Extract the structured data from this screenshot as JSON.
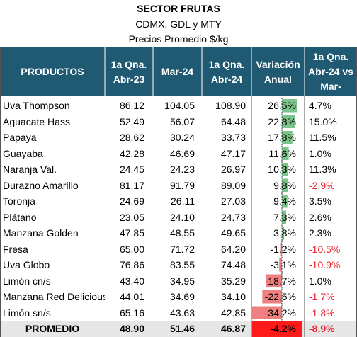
{
  "header": {
    "title": "SECTOR FRUTAS",
    "subtitle1": "CDMX, GDL y MTY",
    "subtitle2": "Precios Promedio $/kg"
  },
  "chart_data": {
    "type": "table",
    "columns": [
      "PRODUCTOS",
      "1a Qna. Abr-23",
      "Mar-24",
      "1a Qna. Abr-24",
      "Variación Anual",
      "1a Qna. Abr-24 vs Mar-"
    ],
    "rows": [
      {
        "product": "Uva Thompson",
        "abr23": "86.12",
        "mar24": "104.05",
        "abr24": "108.90",
        "var_anual": "26.5%",
        "var_mensual": "4.7%",
        "var_value": 26.5
      },
      {
        "product": "Aguacate Hass",
        "abr23": "52.49",
        "mar24": "56.07",
        "abr24": "64.48",
        "var_anual": "22.8%",
        "var_mensual": "15.0%",
        "var_value": 22.8
      },
      {
        "product": "Papaya",
        "abr23": "28.62",
        "mar24": "30.24",
        "abr24": "33.73",
        "var_anual": "17.8%",
        "var_mensual": "11.5%",
        "var_value": 17.8
      },
      {
        "product": "Guayaba",
        "abr23": "42.28",
        "mar24": "46.69",
        "abr24": "47.17",
        "var_anual": "11.6%",
        "var_mensual": "1.0%",
        "var_value": 11.6
      },
      {
        "product": "Naranja Val.",
        "abr23": "24.45",
        "mar24": "24.23",
        "abr24": "26.97",
        "var_anual": "10.3%",
        "var_mensual": "11.3%",
        "var_value": 10.3
      },
      {
        "product": "Durazno Amarillo",
        "abr23": "81.17",
        "mar24": "91.79",
        "abr24": "89.09",
        "var_anual": "9.8%",
        "var_mensual": "-2.9%",
        "var_value": 9.8
      },
      {
        "product": "Toronja",
        "abr23": "24.69",
        "mar24": "26.11",
        "abr24": "27.03",
        "var_anual": "9.4%",
        "var_mensual": "3.5%",
        "var_value": 9.4
      },
      {
        "product": "Plátano",
        "abr23": "23.05",
        "mar24": "24.10",
        "abr24": "24.73",
        "var_anual": "7.3%",
        "var_mensual": "2.6%",
        "var_value": 7.3
      },
      {
        "product": "Manzana Golden",
        "abr23": "47.85",
        "mar24": "48.55",
        "abr24": "49.65",
        "var_anual": "3.8%",
        "var_mensual": "2.3%",
        "var_value": 3.8
      },
      {
        "product": "Fresa",
        "abr23": "65.00",
        "mar24": "71.72",
        "abr24": "64.20",
        "var_anual": "-1.2%",
        "var_mensual": "-10.5%",
        "var_value": -1.2
      },
      {
        "product": "Uva Globo",
        "abr23": "76.86",
        "mar24": "83.55",
        "abr24": "74.48",
        "var_anual": "-3.1%",
        "var_mensual": "-10.9%",
        "var_value": -3.1
      },
      {
        "product": "Limón cn/s",
        "abr23": "43.40",
        "mar24": "34.95",
        "abr24": "35.29",
        "var_anual": "-18.7%",
        "var_mensual": "1.0%",
        "var_value": -18.7
      },
      {
        "product": "Manzana Red Delicious",
        "abr23": "44.01",
        "mar24": "34.69",
        "abr24": "34.10",
        "var_anual": "-22.5%",
        "var_mensual": "-1.7%",
        "var_value": -22.5
      },
      {
        "product": "Limón sn/s",
        "abr23": "65.16",
        "mar24": "43.63",
        "abr24": "42.85",
        "var_anual": "-34.2%",
        "var_mensual": "-1.8%",
        "var_value": -34.2
      }
    ],
    "total": {
      "product": "PROMEDIO",
      "abr23": "48.90",
      "mar24": "51.46",
      "abr24": "46.87",
      "var_anual": "-4.2%",
      "var_mensual": "-8.9%",
      "var_value": -4.2
    }
  },
  "colors": {
    "header_bg": "#1f5a72",
    "positive_bar": "#7cc48c",
    "negative_bar": "#f08080",
    "negative_text": "#e8202a",
    "total_bg": "#e7e6e6",
    "total_var_bg": "#ff1a1a"
  }
}
